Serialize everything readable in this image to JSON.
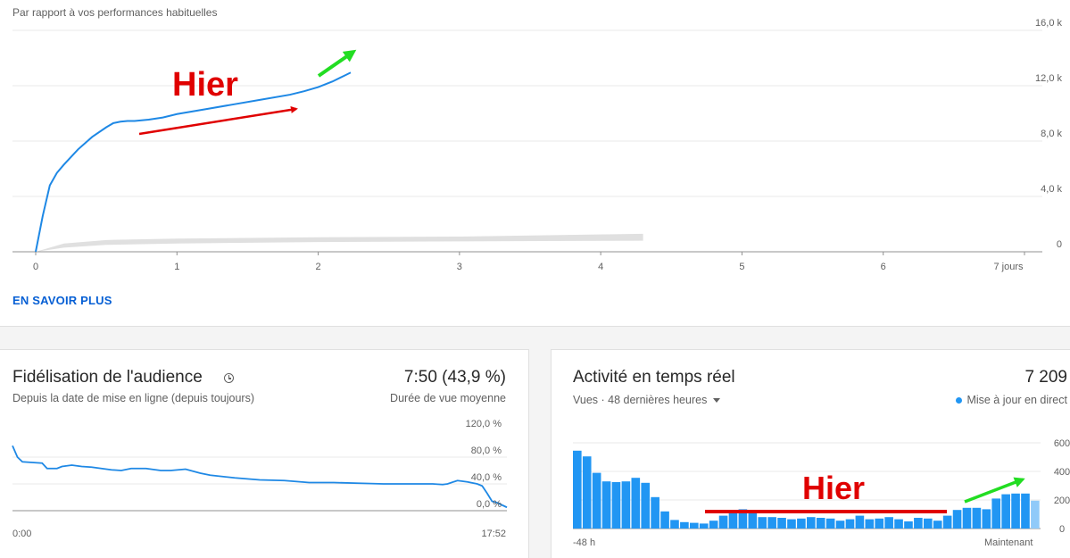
{
  "performance": {
    "subtitle": "Par rapport à vos performances habituelles",
    "learn_more": "EN SAVOIR PLUS",
    "annotation": "Hier",
    "chart_data": {
      "type": "line",
      "y_ticks": [
        "16,0 k",
        "12,0 k",
        "8,0 k",
        "4,0 k",
        "0"
      ],
      "x_ticks": [
        "0",
        "1",
        "2",
        "3",
        "4",
        "5",
        "6",
        "7 jours"
      ],
      "xlim": [
        0,
        7
      ],
      "ylim": [
        0,
        16000
      ],
      "series": [
        {
          "color": "#1e88e5",
          "x": [
            0,
            0.05,
            0.1,
            0.15,
            0.2,
            0.3,
            0.4,
            0.5,
            0.55,
            0.6,
            0.65,
            0.7,
            0.75,
            0.8,
            0.9,
            1.0,
            1.2,
            1.4,
            1.6,
            1.8,
            1.9,
            2.0,
            2.1,
            2.2,
            2.23
          ],
          "y": [
            0,
            2600,
            4800,
            5700,
            6300,
            7400,
            8300,
            9000,
            9300,
            9400,
            9450,
            9450,
            9500,
            9550,
            9700,
            9950,
            10300,
            10650,
            11000,
            11350,
            11600,
            11900,
            12300,
            12800,
            12950
          ]
        }
      ],
      "typical_range": {
        "color": "#e0e0e0",
        "x": [
          0,
          0.2,
          0.5,
          1.0,
          2.0,
          3.0,
          4.3
        ],
        "low": [
          0,
          300,
          500,
          600,
          700,
          750,
          800
        ],
        "high": [
          0,
          600,
          850,
          950,
          1050,
          1100,
          1300
        ]
      }
    }
  },
  "retention": {
    "title": "Fidélisation de l'audience",
    "subtitle": "Depuis la date de mise en ligne (depuis toujours)",
    "value": "7:50 (43,9 %)",
    "value_label": "Durée de vue moyenne",
    "chart_data": {
      "type": "line",
      "y_ticks": [
        "120,0 %",
        "80,0 %",
        "40,0 %",
        "0,0 %"
      ],
      "ylim": [
        0,
        120
      ],
      "x_labels": [
        "0:00",
        "17:52"
      ],
      "series": [
        {
          "color": "#1e88e5",
          "x": [
            0,
            0.01,
            0.02,
            0.04,
            0.06,
            0.07,
            0.09,
            0.1,
            0.12,
            0.14,
            0.16,
            0.2,
            0.22,
            0.24,
            0.27,
            0.3,
            0.32,
            0.35,
            0.38,
            0.4,
            0.45,
            0.5,
            0.55,
            0.6,
            0.65,
            0.7,
            0.75,
            0.8,
            0.85,
            0.87,
            0.88,
            0.9,
            0.92,
            0.94,
            0.95,
            0.96,
            0.97,
            0.98,
            1.0
          ],
          "y": [
            97,
            80,
            73,
            72,
            71,
            63,
            63,
            66,
            68,
            66,
            65,
            61,
            60,
            63,
            63,
            60,
            60,
            62,
            56,
            53,
            49,
            46,
            45,
            42,
            42,
            41,
            40,
            40,
            40,
            39,
            40,
            45,
            43,
            40,
            37,
            26,
            14,
            12,
            5
          ]
        }
      ]
    }
  },
  "realtime": {
    "title": "Activité en temps réel",
    "value": "7 209",
    "dropdown": "Vues · 48 dernières heures",
    "live": "Mise à jour en direct",
    "annotation": "Hier",
    "chart_data": {
      "type": "bar",
      "color": "#2196f3",
      "highlight_color": "#90caf9",
      "y_ticks": [
        "600",
        "400",
        "200",
        "0"
      ],
      "ylim": [
        0,
        600
      ],
      "x_labels": [
        "-48 h",
        "Maintenant"
      ],
      "values": [
        545,
        505,
        390,
        330,
        325,
        330,
        355,
        320,
        220,
        120,
        60,
        45,
        40,
        35,
        55,
        90,
        110,
        135,
        110,
        80,
        80,
        75,
        65,
        70,
        80,
        75,
        70,
        55,
        65,
        90,
        65,
        70,
        80,
        65,
        50,
        75,
        70,
        55,
        90,
        130,
        145,
        145,
        135,
        210,
        240,
        245,
        245,
        195
      ]
    }
  }
}
